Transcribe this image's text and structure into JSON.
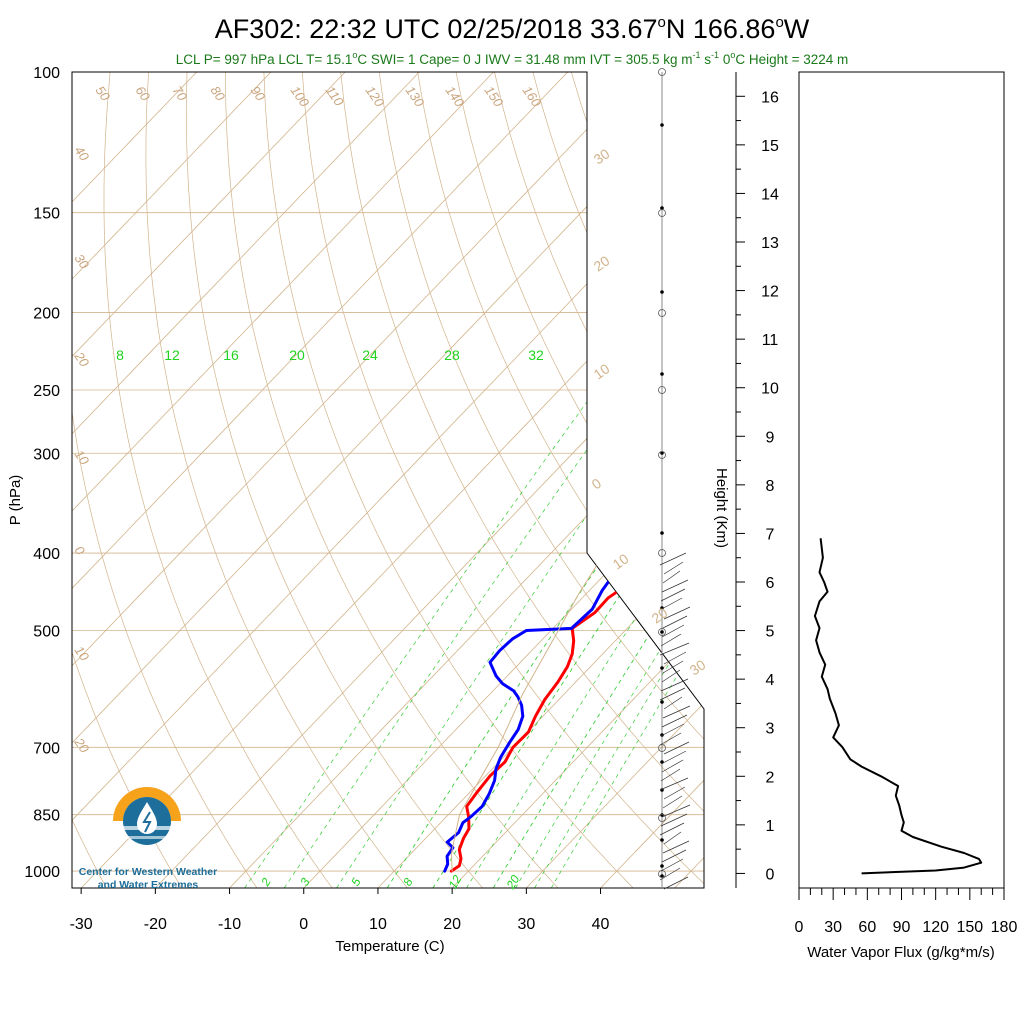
{
  "title": "AF302: 22:32 UTC 02/25/2018  33.67",
  "title_lat_sup": "o",
  "title_lat_tail": "N 166.86",
  "title_lon_sup": "o",
  "title_lon_tail": "W",
  "subtitle": {
    "part1": "LCL P= 997 hPa  LCL T= 15.1",
    "deg": "o",
    "part2": "C  SWI= 1  Cape= 0 J  IWV = 31.48 mm  IVT = 305.5 kg m",
    "exp1": "-1",
    "mid": " s",
    "exp2": "-1",
    "part3": "  0",
    "deg2": "o",
    "part4": "C Height = 3224 m"
  },
  "logo": {
    "line1": "Center for Western Weather",
    "line2": "and Water Extremes"
  },
  "colors": {
    "temperature": "#ff0000",
    "dewpoint": "#0000ff",
    "isotherm": "#d2b48c",
    "dry_adiabat": "#d2b48c",
    "mixing_ratio": "#32cd32",
    "title_sub": "#1a7a1a"
  },
  "chart_data": [
    {
      "type": "line",
      "chart": "skew-t",
      "xlabel": "Temperature (C)",
      "ylabel": "P (hPa)",
      "xlim": [
        -35,
        50
      ],
      "ylim": [
        1050,
        100
      ],
      "x_ticks": [
        -30,
        -20,
        -10,
        0,
        10,
        20,
        30,
        40
      ],
      "y_ticks": [
        100,
        150,
        200,
        250,
        300,
        400,
        500,
        700,
        850,
        1000
      ],
      "isotherm_labels": [
        -40,
        -30,
        -20,
        -10,
        0,
        10,
        20,
        30
      ],
      "dry_adiabat_labels": [
        50,
        60,
        70,
        80,
        90,
        100,
        110,
        120,
        130,
        140,
        150,
        160
      ],
      "upper_mixing_ratio_labels": [
        8,
        12,
        16,
        20,
        24,
        28,
        32
      ],
      "lower_mixing_ratio_labels": [
        2,
        3,
        5,
        8,
        12,
        20
      ],
      "series": [
        {
          "name": "Temperature",
          "color": "#ff0000",
          "points": [
            [
              17.7,
              1000
            ],
            [
              18.1,
              985
            ],
            [
              17.4,
              965
            ],
            [
              16.0,
              940
            ],
            [
              15.1,
              910
            ],
            [
              14.6,
              885
            ],
            [
              13.0,
              855
            ],
            [
              11.4,
              830
            ],
            [
              11.0,
              800
            ],
            [
              10.6,
              760
            ],
            [
              10.8,
              730
            ],
            [
              10.0,
              700
            ],
            [
              10.1,
              670
            ],
            [
              9.0,
              640
            ],
            [
              8.1,
              610
            ],
            [
              7.6,
              580
            ],
            [
              6.9,
              555
            ],
            [
              5.9,
              535
            ],
            [
              4.4,
              515
            ],
            [
              2.6,
              497
            ],
            [
              3.6,
              475
            ],
            [
              3.5,
              455
            ],
            [
              4.8,
              430
            ],
            [
              5.0,
              410
            ]
          ]
        },
        {
          "name": "Dewpoint",
          "color": "#0000ff",
          "points": [
            [
              16.8,
              1000
            ],
            [
              16.3,
              980
            ],
            [
              15.2,
              958
            ],
            [
              14.9,
              935
            ],
            [
              13.4,
              920
            ],
            [
              13.7,
              895
            ],
            [
              13.0,
              870
            ],
            [
              13.3,
              855
            ],
            [
              13.5,
              830
            ],
            [
              12.8,
              800
            ],
            [
              11.8,
              770
            ],
            [
              10.5,
              745
            ],
            [
              9.6,
              720
            ],
            [
              8.9,
              690
            ],
            [
              8.4,
              665
            ],
            [
              7.3,
              640
            ],
            [
              5.7,
              620
            ],
            [
              4.1,
              605
            ],
            [
              2.8,
              595
            ],
            [
              0.4,
              583
            ],
            [
              -1.5,
              570
            ],
            [
              -4.1,
              548
            ],
            [
              -4.3,
              530
            ],
            [
              -4.1,
              512
            ],
            [
              -3.3,
              500
            ],
            [
              2.5,
              497
            ],
            [
              2.8,
              470
            ],
            [
              1.7,
              445
            ],
            [
              1.2,
              425
            ],
            [
              1.6,
              410
            ]
          ]
        },
        {
          "name": "Parcel",
          "color": "#d2b48c",
          "points": [
            [
              17.8,
              1000
            ],
            [
              15.4,
              950
            ],
            [
              11.5,
              850
            ],
            [
              8.0,
              700
            ],
            [
              4.4,
              600
            ],
            [
              1.0,
              500
            ],
            [
              -1.0,
              450
            ],
            [
              -2.8,
              400
            ],
            [
              -5.8,
              300
            ],
            [
              -7.8,
              250
            ],
            [
              -8.8,
              230
            ],
            [
              -7.8,
              200
            ],
            [
              -2.5,
              150
            ],
            [
              3.8,
              100
            ]
          ]
        }
      ]
    },
    {
      "type": "line",
      "chart": "height-profile",
      "ylabel": "Height (Km)",
      "ylim": [
        -0.3,
        16.5
      ],
      "y_ticks": [
        0,
        1,
        2,
        3,
        4,
        5,
        6,
        7,
        8,
        9,
        10,
        11,
        12,
        13,
        14,
        15,
        16
      ]
    },
    {
      "type": "line",
      "chart": "water-vapor-flux",
      "xlabel": "Water Vapor Flux (g/kg*m/s)",
      "xlim": [
        0,
        180
      ],
      "x_ticks": [
        0,
        30,
        60,
        90,
        120,
        150,
        180
      ],
      "ylim": [
        -0.3,
        16.5
      ],
      "series": [
        {
          "name": "Water Vapor Flux",
          "color": "#000000",
          "points": [
            [
              55,
              0.0
            ],
            [
              85,
              0.03
            ],
            [
              120,
              0.06
            ],
            [
              145,
              0.12
            ],
            [
              160,
              0.22
            ],
            [
              158,
              0.3
            ],
            [
              145,
              0.42
            ],
            [
              125,
              0.55
            ],
            [
              100,
              0.75
            ],
            [
              90,
              0.88
            ],
            [
              92,
              1.05
            ],
            [
              90,
              1.2
            ],
            [
              88,
              1.4
            ],
            [
              85,
              1.6
            ],
            [
              87,
              1.8
            ],
            [
              72,
              2.0
            ],
            [
              55,
              2.2
            ],
            [
              45,
              2.35
            ],
            [
              38,
              2.6
            ],
            [
              30,
              2.8
            ],
            [
              35,
              3.05
            ],
            [
              32,
              3.3
            ],
            [
              27,
              3.6
            ],
            [
              25,
              3.8
            ],
            [
              20,
              4.05
            ],
            [
              23,
              4.3
            ],
            [
              18,
              4.55
            ],
            [
              15,
              4.8
            ],
            [
              18,
              5.05
            ],
            [
              14,
              5.3
            ],
            [
              18,
              5.6
            ],
            [
              25,
              5.8
            ],
            [
              22,
              6.0
            ],
            [
              18,
              6.2
            ],
            [
              21,
              6.5
            ],
            [
              19,
              6.9
            ]
          ]
        }
      ]
    }
  ]
}
